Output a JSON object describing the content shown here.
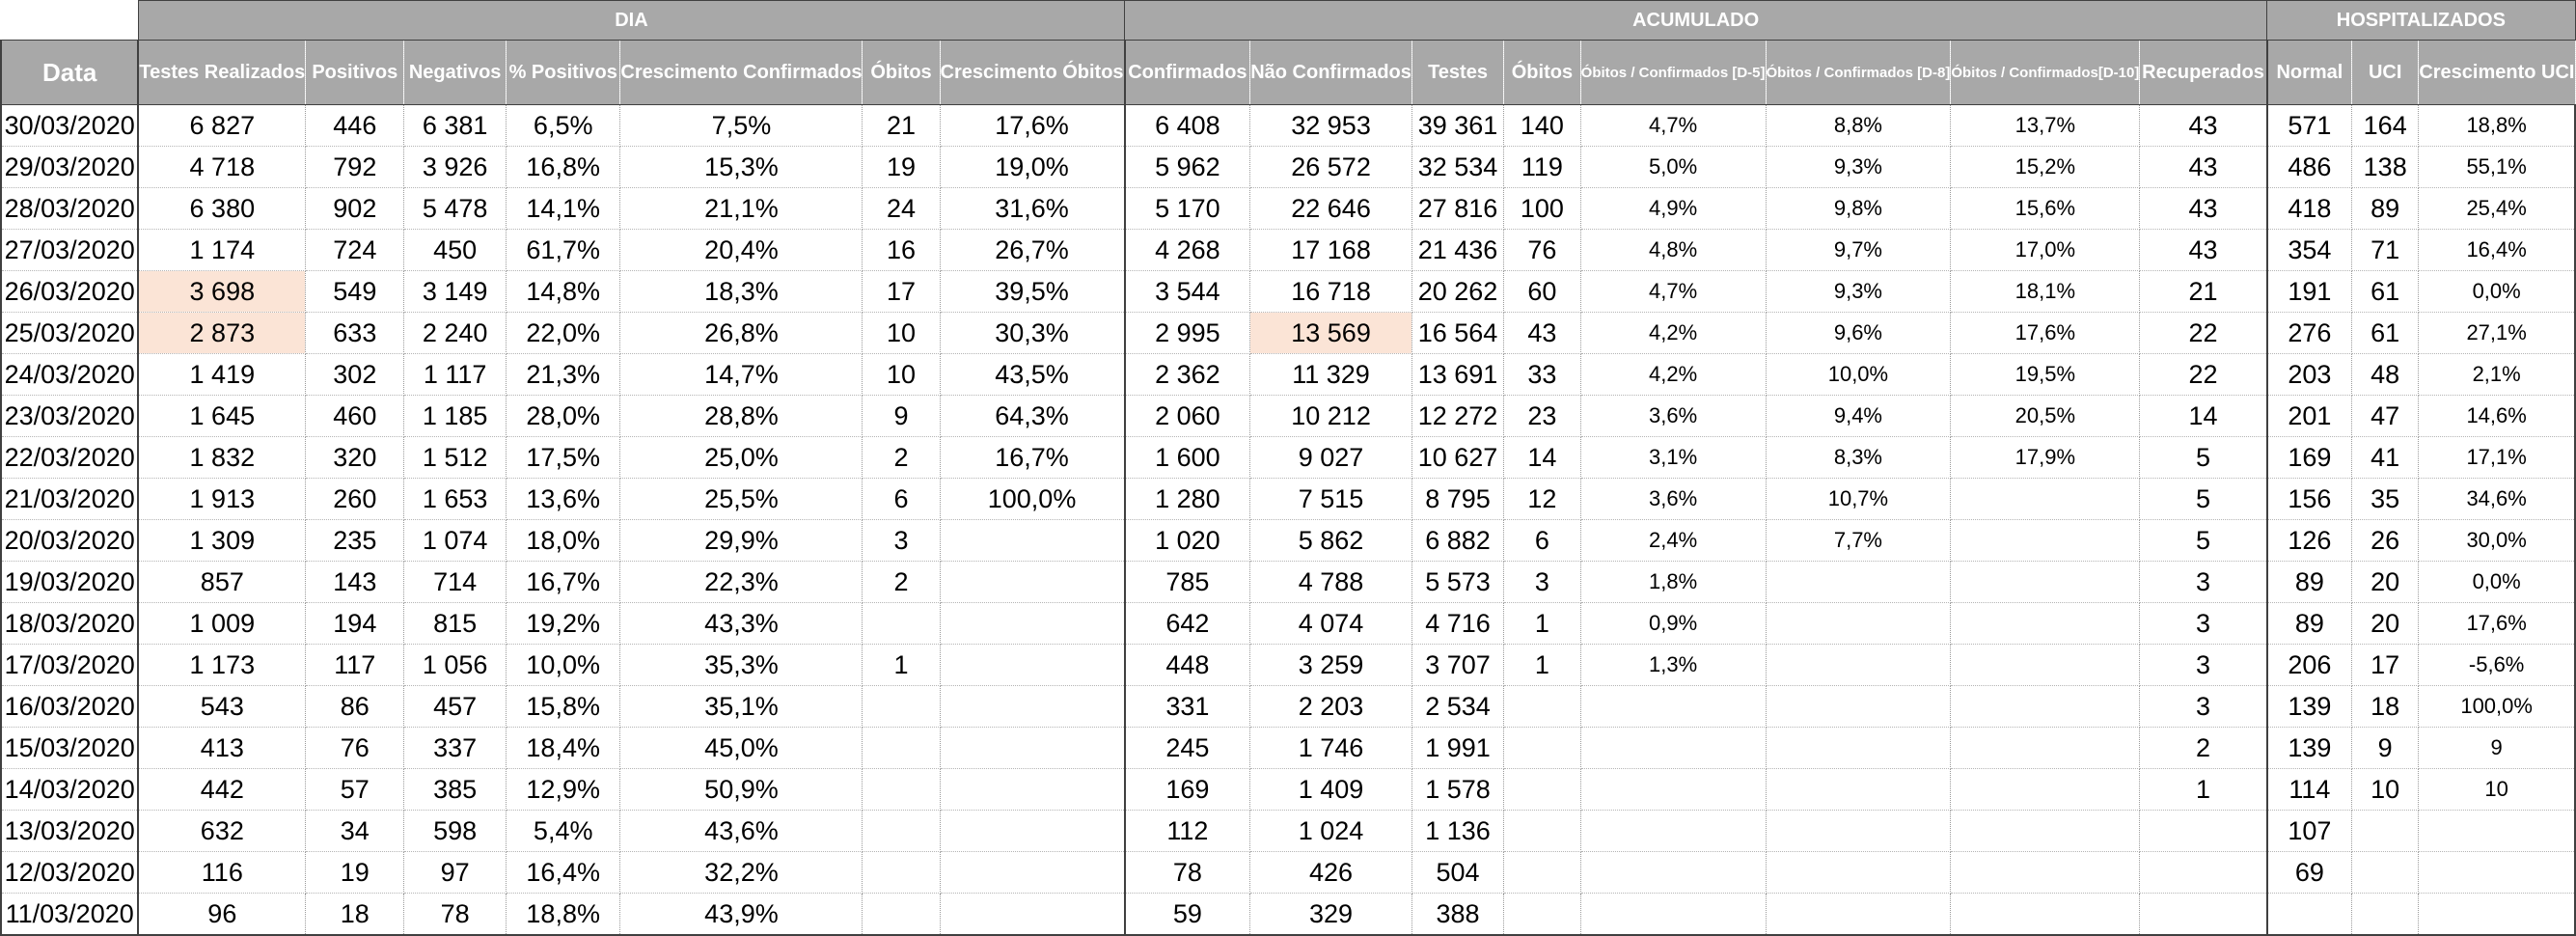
{
  "groups": {
    "dia": "DIA",
    "acumulado": "ACUMULADO",
    "hospitalizados": "HOSPITALIZADOS"
  },
  "columns": [
    "Data",
    "Testes Realizados",
    "Positivos",
    "Negativos",
    "% Positivos",
    "Crescimento Confirmados",
    "Óbitos",
    "Crescimento Óbitos",
    "Confirmados",
    "Não Confirmados",
    "Testes",
    "Óbitos",
    "Óbitos / Confirmados [D-5]",
    "Óbitos / Confirmados [D-8]",
    "Óbitos / Confirmados[D-10]",
    "Recuperados",
    "Normal",
    "UCI",
    "Crescimento UCI"
  ],
  "rows": [
    [
      "30/03/2020",
      "6 827",
      "446",
      "6 381",
      "6,5%",
      "7,5%",
      "21",
      "17,6%",
      "6 408",
      "32 953",
      "39 361",
      "140",
      "4,7%",
      "8,8%",
      "13,7%",
      "43",
      "571",
      "164",
      "18,8%"
    ],
    [
      "29/03/2020",
      "4 718",
      "792",
      "3 926",
      "16,8%",
      "15,3%",
      "19",
      "19,0%",
      "5 962",
      "26 572",
      "32 534",
      "119",
      "5,0%",
      "9,3%",
      "15,2%",
      "43",
      "486",
      "138",
      "55,1%"
    ],
    [
      "28/03/2020",
      "6 380",
      "902",
      "5 478",
      "14,1%",
      "21,1%",
      "24",
      "31,6%",
      "5 170",
      "22 646",
      "27 816",
      "100",
      "4,9%",
      "9,8%",
      "15,6%",
      "43",
      "418",
      "89",
      "25,4%"
    ],
    [
      "27/03/2020",
      "1 174",
      "724",
      "450",
      "61,7%",
      "20,4%",
      "16",
      "26,7%",
      "4 268",
      "17 168",
      "21 436",
      "76",
      "4,8%",
      "9,7%",
      "17,0%",
      "43",
      "354",
      "71",
      "16,4%"
    ],
    [
      "26/03/2020",
      "3 698",
      "549",
      "3 149",
      "14,8%",
      "18,3%",
      "17",
      "39,5%",
      "3 544",
      "16 718",
      "20 262",
      "60",
      "4,7%",
      "9,3%",
      "18,1%",
      "21",
      "191",
      "61",
      "0,0%"
    ],
    [
      "25/03/2020",
      "2 873",
      "633",
      "2 240",
      "22,0%",
      "26,8%",
      "10",
      "30,3%",
      "2 995",
      "13 569",
      "16 564",
      "43",
      "4,2%",
      "9,6%",
      "17,6%",
      "22",
      "276",
      "61",
      "27,1%"
    ],
    [
      "24/03/2020",
      "1 419",
      "302",
      "1 117",
      "21,3%",
      "14,7%",
      "10",
      "43,5%",
      "2 362",
      "11 329",
      "13 691",
      "33",
      "4,2%",
      "10,0%",
      "19,5%",
      "22",
      "203",
      "48",
      "2,1%"
    ],
    [
      "23/03/2020",
      "1 645",
      "460",
      "1 185",
      "28,0%",
      "28,8%",
      "9",
      "64,3%",
      "2 060",
      "10 212",
      "12 272",
      "23",
      "3,6%",
      "9,4%",
      "20,5%",
      "14",
      "201",
      "47",
      "14,6%"
    ],
    [
      "22/03/2020",
      "1 832",
      "320",
      "1 512",
      "17,5%",
      "25,0%",
      "2",
      "16,7%",
      "1 600",
      "9 027",
      "10 627",
      "14",
      "3,1%",
      "8,3%",
      "17,9%",
      "5",
      "169",
      "41",
      "17,1%"
    ],
    [
      "21/03/2020",
      "1 913",
      "260",
      "1 653",
      "13,6%",
      "25,5%",
      "6",
      "100,0%",
      "1 280",
      "7 515",
      "8 795",
      "12",
      "3,6%",
      "10,7%",
      "",
      "5",
      "156",
      "35",
      "34,6%"
    ],
    [
      "20/03/2020",
      "1 309",
      "235",
      "1 074",
      "18,0%",
      "29,9%",
      "3",
      "",
      "1 020",
      "5 862",
      "6 882",
      "6",
      "2,4%",
      "7,7%",
      "",
      "5",
      "126",
      "26",
      "30,0%"
    ],
    [
      "19/03/2020",
      "857",
      "143",
      "714",
      "16,7%",
      "22,3%",
      "2",
      "",
      "785",
      "4 788",
      "5 573",
      "3",
      "1,8%",
      "",
      "",
      "3",
      "89",
      "20",
      "0,0%"
    ],
    [
      "18/03/2020",
      "1 009",
      "194",
      "815",
      "19,2%",
      "43,3%",
      "",
      "",
      "642",
      "4 074",
      "4 716",
      "1",
      "0,9%",
      "",
      "",
      "3",
      "89",
      "20",
      "17,6%"
    ],
    [
      "17/03/2020",
      "1 173",
      "117",
      "1 056",
      "10,0%",
      "35,3%",
      "1",
      "",
      "448",
      "3 259",
      "3 707",
      "1",
      "1,3%",
      "",
      "",
      "3",
      "206",
      "17",
      "-5,6%"
    ],
    [
      "16/03/2020",
      "543",
      "86",
      "457",
      "15,8%",
      "35,1%",
      "",
      "",
      "331",
      "2 203",
      "2 534",
      "",
      "",
      "",
      "",
      "3",
      "139",
      "18",
      "100,0%"
    ],
    [
      "15/03/2020",
      "413",
      "76",
      "337",
      "18,4%",
      "45,0%",
      "",
      "",
      "245",
      "1 746",
      "1 991",
      "",
      "",
      "",
      "",
      "2",
      "139",
      "9",
      "9"
    ],
    [
      "14/03/2020",
      "442",
      "57",
      "385",
      "12,9%",
      "50,9%",
      "",
      "",
      "169",
      "1 409",
      "1 578",
      "",
      "",
      "",
      "",
      "1",
      "114",
      "10",
      "10"
    ],
    [
      "13/03/2020",
      "632",
      "34",
      "598",
      "5,4%",
      "43,6%",
      "",
      "",
      "112",
      "1 024",
      "1 136",
      "",
      "",
      "",
      "",
      "",
      "107",
      "",
      ""
    ],
    [
      "12/03/2020",
      "116",
      "19",
      "97",
      "16,4%",
      "32,2%",
      "",
      "",
      "78",
      "426",
      "504",
      "",
      "",
      "",
      "",
      "",
      "69",
      "",
      ""
    ],
    [
      "11/03/2020",
      "96",
      "18",
      "78",
      "18,8%",
      "43,9%",
      "",
      "",
      "59",
      "329",
      "388",
      "",
      "",
      "",
      "",
      "",
      "",
      "",
      ""
    ]
  ],
  "highlight_color": "#fbe4d6",
  "header_color": "#a8a8a8"
}
